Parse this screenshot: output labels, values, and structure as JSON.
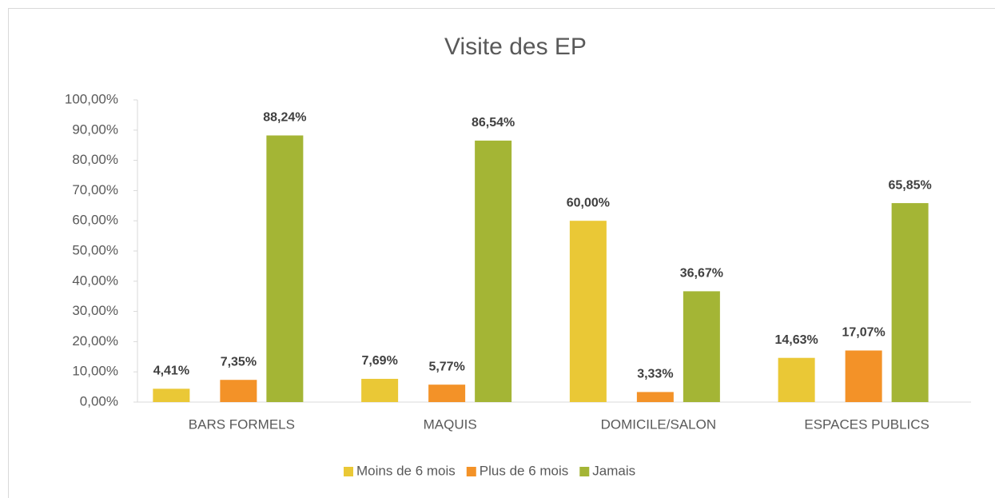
{
  "chart_data": {
    "type": "bar",
    "title": "Visite des EP",
    "categories": [
      "BARS FORMELS",
      "MAQUIS",
      "DOMICILE/SALON",
      "ESPACES PUBLICS"
    ],
    "series": [
      {
        "name": "Moins de 6 mois",
        "color": "#eac836",
        "values": [
          4.41,
          7.69,
          60.0,
          14.63
        ],
        "value_labels": [
          "4,41%",
          "7,69%",
          "60,00%",
          "14,63%"
        ]
      },
      {
        "name": "Plus de 6 mois",
        "color": "#f39228",
        "values": [
          7.35,
          5.77,
          3.33,
          17.07
        ],
        "value_labels": [
          "7,35%",
          "5,77%",
          "3,33%",
          "17,07%"
        ]
      },
      {
        "name": "Jamais",
        "color": "#a4b535",
        "values": [
          88.24,
          86.54,
          36.67,
          65.85
        ],
        "value_labels": [
          "88,24%",
          "86,54%",
          "36,67%",
          "65,85%"
        ]
      }
    ],
    "ylim": [
      0,
      100
    ],
    "yticks": [
      {
        "value": 0,
        "label": "0,00%"
      },
      {
        "value": 10,
        "label": "10,00%"
      },
      {
        "value": 20,
        "label": "20,00%"
      },
      {
        "value": 30,
        "label": "30,00%"
      },
      {
        "value": 40,
        "label": "40,00%"
      },
      {
        "value": 50,
        "label": "50,00%"
      },
      {
        "value": 60,
        "label": "60,00%"
      },
      {
        "value": 70,
        "label": "70,00%"
      },
      {
        "value": 80,
        "label": "80,00%"
      },
      {
        "value": 90,
        "label": "90,00%"
      },
      {
        "value": 100,
        "label": "100,00%"
      }
    ],
    "legend": "bottom"
  }
}
